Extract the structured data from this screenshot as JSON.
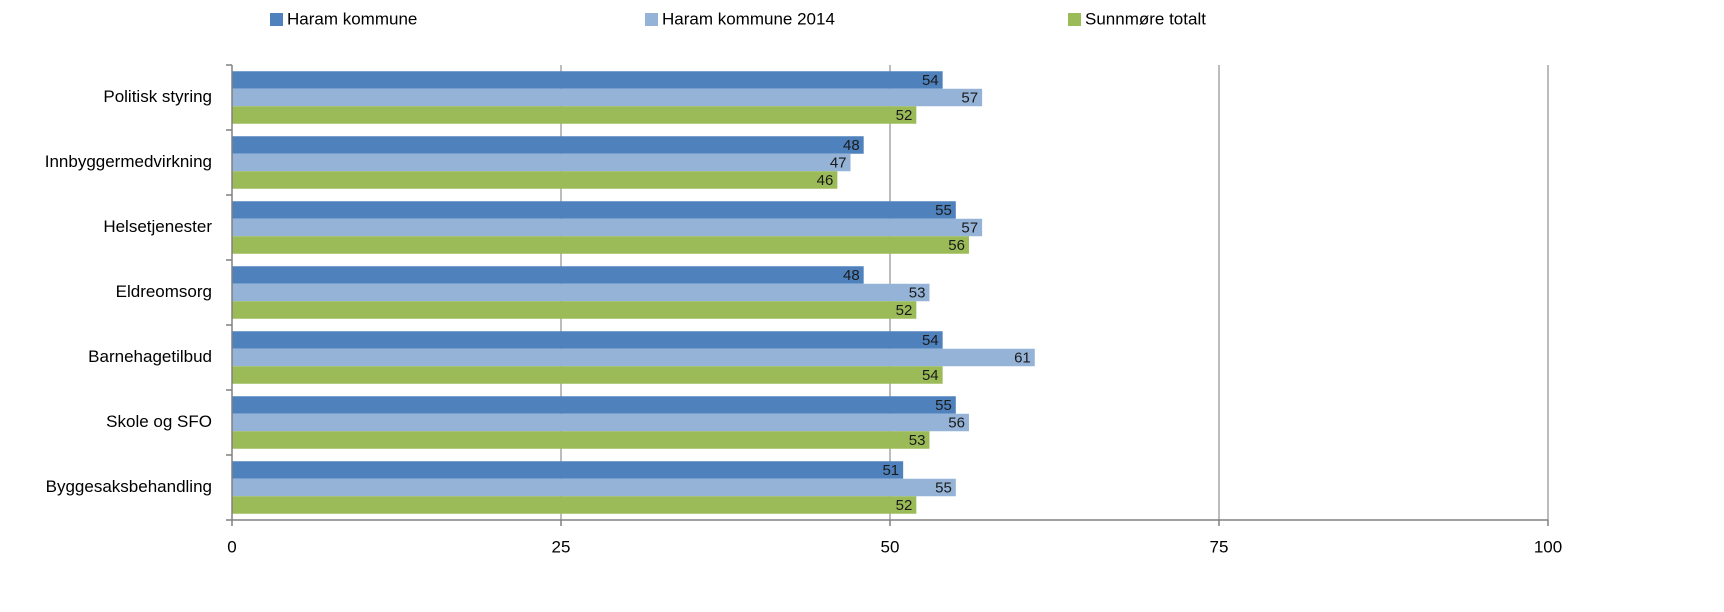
{
  "chart_data": {
    "type": "hbar",
    "categories": [
      "Politisk styring",
      "Innbyggermedvirkning",
      "Helsetjenester",
      "Eldreomsorg",
      "Barnehagetilbud",
      "Skole og SFO",
      "Byggesaksbehandling"
    ],
    "series": [
      {
        "name": "Haram kommune",
        "color": "#4f81bd",
        "values": [
          54,
          48,
          55,
          48,
          54,
          55,
          51
        ]
      },
      {
        "name": "Haram kommune 2014",
        "color": "#95b3d7",
        "values": [
          57,
          47,
          57,
          53,
          61,
          56,
          55
        ]
      },
      {
        "name": "Sunnmøre totalt",
        "color": "#9bbb59",
        "values": [
          52,
          46,
          56,
          52,
          54,
          53,
          52
        ]
      }
    ],
    "xlim": [
      0,
      100
    ],
    "xticks": [
      0,
      25,
      50,
      75,
      100
    ],
    "grid": true,
    "legend": "top"
  }
}
